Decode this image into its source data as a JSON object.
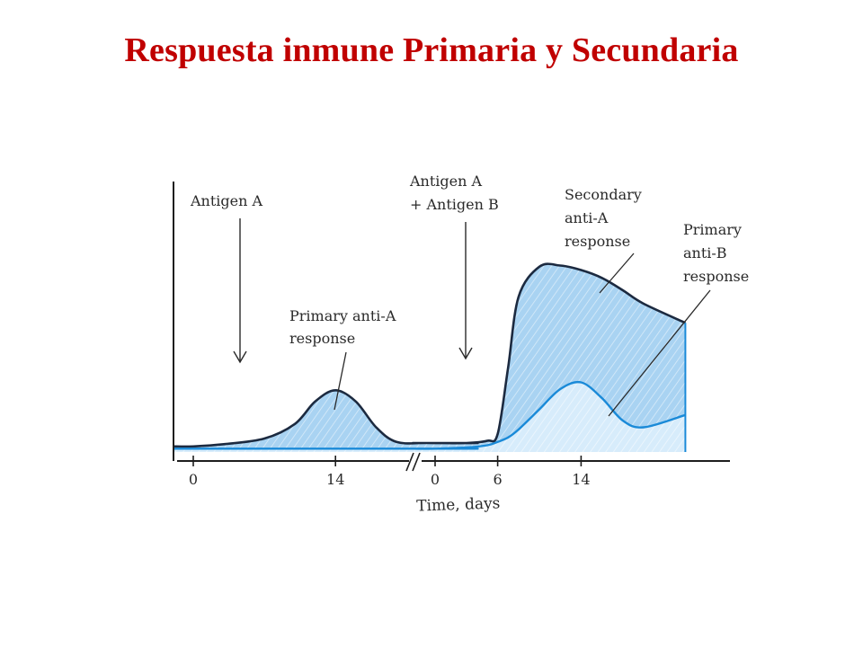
{
  "slide": {
    "title": "Respuesta inmune  Primaria y Secundaria"
  },
  "chart_data": {
    "type": "area",
    "xlabel": "Time, days",
    "ylabel": "",
    "grid": false,
    "legend": "none",
    "colors": {
      "anti_a_fill": "#a9d3f2",
      "anti_a_line": "#1c2a40",
      "anti_b_fill": "#d7ecfb",
      "anti_b_line": "#1a8ad8",
      "hatch": "#ffffff"
    },
    "x_ticks": [
      "0",
      "14",
      "0",
      "6",
      "14"
    ],
    "segments": [
      {
        "x": [
          -2,
          0,
          3,
          7,
          10,
          12,
          14,
          16,
          18,
          20,
          23,
          28
        ]
      },
      {
        "x": [
          -2,
          0,
          3,
          5,
          6,
          7,
          8,
          10,
          12,
          14,
          16,
          18,
          20,
          24
        ]
      }
    ],
    "series": [
      {
        "id": "anti_a",
        "segment_values": [
          [
            0.05,
            0.05,
            0.07,
            0.12,
            0.25,
            0.45,
            0.55,
            0.45,
            0.22,
            0.09,
            0.08,
            0.08
          ],
          [
            0.08,
            0.08,
            0.08,
            0.1,
            0.16,
            0.75,
            1.38,
            1.65,
            1.66,
            1.62,
            1.55,
            1.44,
            1.32,
            1.15
          ]
        ]
      },
      {
        "id": "anti_b",
        "segment_values": [
          [
            0.03,
            0.03,
            0.03,
            0.03,
            0.03,
            0.03,
            0.03,
            0.03,
            0.03,
            0.03,
            0.03,
            0.03
          ],
          [
            0.03,
            0.03,
            0.04,
            0.06,
            0.09,
            0.13,
            0.2,
            0.38,
            0.56,
            0.62,
            0.48,
            0.28,
            0.22,
            0.33
          ]
        ]
      }
    ],
    "annotations": {
      "injection_1": [
        "Antigen A"
      ],
      "injection_2": [
        "Antigen A",
        "+ Antigen B"
      ],
      "primary_anti_a": [
        "Primary anti-A",
        "response"
      ],
      "secondary_anti_a": [
        "Secondary",
        "anti-A",
        "response"
      ],
      "primary_anti_b": [
        "Primary",
        "anti-B",
        "response"
      ]
    }
  }
}
